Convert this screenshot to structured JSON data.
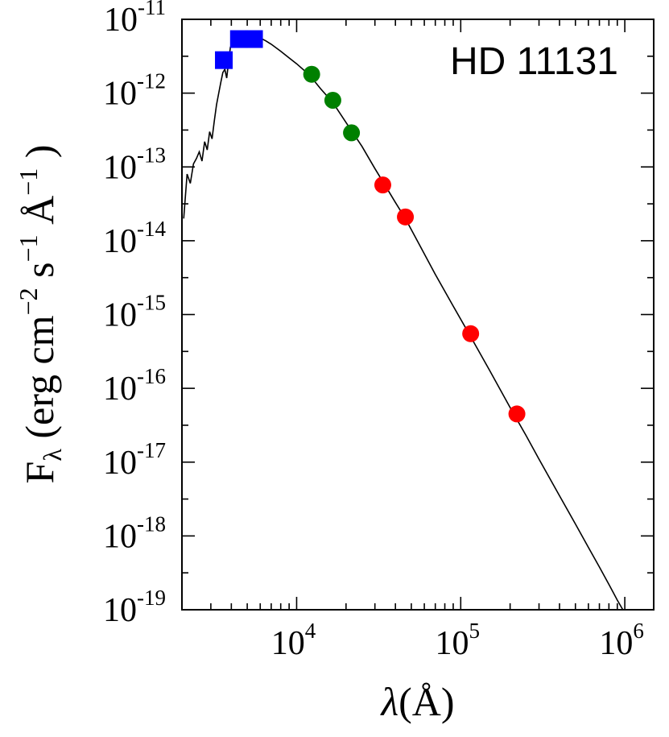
{
  "chart_data": {
    "type": "scatter",
    "annotation": "HD 11131",
    "xlabel_symbol": "λ",
    "xlabel_unit": "(Å)",
    "ylabel_main": "F",
    "ylabel_sub": "λ",
    "ylabel_units": [
      {
        "t": " (erg cm",
        "sup": false
      },
      {
        "t": "−2",
        "sup": true
      },
      {
        "t": " s",
        "sup": false
      },
      {
        "t": "−1",
        "sup": true
      },
      {
        "t": " Å",
        "sup": false
      },
      {
        "t": "−1",
        "sup": true
      },
      {
        "t": " )",
        "sup": false
      }
    ],
    "x_scale": "log",
    "y_scale": "log",
    "xlim": [
      2000,
      1500000
    ],
    "ylim": [
      1e-19,
      1e-11
    ],
    "x_ticks": [
      {
        "value": 10000,
        "base": "10",
        "exp": "4"
      },
      {
        "value": 100000,
        "base": "10",
        "exp": "5"
      },
      {
        "value": 1000000,
        "base": "10",
        "exp": "6"
      }
    ],
    "y_ticks": [
      {
        "value": 1e-11,
        "base": "10",
        "exp": "-11"
      },
      {
        "value": 1e-12,
        "base": "10",
        "exp": "-12"
      },
      {
        "value": 1e-13,
        "base": "10",
        "exp": "-13"
      },
      {
        "value": 1e-14,
        "base": "10",
        "exp": "-14"
      },
      {
        "value": 1e-15,
        "base": "10",
        "exp": "-15"
      },
      {
        "value": 1e-16,
        "base": "10",
        "exp": "-16"
      },
      {
        "value": 1e-17,
        "base": "10",
        "exp": "-17"
      },
      {
        "value": 1e-18,
        "base": "10",
        "exp": "-18"
      },
      {
        "value": 1e-19,
        "base": "10",
        "exp": "-19"
      }
    ],
    "grid": false,
    "legend": "none",
    "series": [
      {
        "marker": "square",
        "color": "#0000ff",
        "points": [
          {
            "x": 3600,
            "y": 2.8e-12
          },
          {
            "x": 4450,
            "y": 5.4e-12
          },
          {
            "x": 5500,
            "y": 5.4e-12
          }
        ]
      },
      {
        "marker": "circle",
        "color": "#008000",
        "points": [
          {
            "x": 12350,
            "y": 1.8e-12
          },
          {
            "x": 16620,
            "y": 8e-13
          },
          {
            "x": 21590,
            "y": 2.9e-13
          }
        ]
      },
      {
        "marker": "circle",
        "color": "#ff0000",
        "points": [
          {
            "x": 33500,
            "y": 5.7e-14
          },
          {
            "x": 46000,
            "y": 2.1e-14
          },
          {
            "x": 115000,
            "y": 5.5e-16
          },
          {
            "x": 220000,
            "y": 4.5e-17
          }
        ]
      }
    ],
    "model_line": {
      "color": "#000000",
      "points": [
        [
          2050,
          2e-14
        ],
        [
          2150,
          8e-14
        ],
        [
          2250,
          6e-14
        ],
        [
          2350,
          1.1e-13
        ],
        [
          2450,
          1.3e-13
        ],
        [
          2550,
          1.6e-13
        ],
        [
          2650,
          1.2e-13
        ],
        [
          2750,
          2.2e-13
        ],
        [
          2850,
          1.7e-13
        ],
        [
          2950,
          3e-13
        ],
        [
          3050,
          2.4e-13
        ],
        [
          3150,
          4.2e-13
        ],
        [
          3250,
          7e-13
        ],
        [
          3350,
          1e-12
        ],
        [
          3450,
          1.4e-12
        ],
        [
          3550,
          1.9e-12
        ],
        [
          3650,
          2.1e-12
        ],
        [
          3750,
          1.6e-12
        ],
        [
          3850,
          2.7e-12
        ],
        [
          3950,
          4.2e-12
        ],
        [
          4100,
          4.8e-12
        ],
        [
          4300,
          5.3e-12
        ],
        [
          4500,
          5.6e-12
        ],
        [
          4800,
          5.9e-12
        ],
        [
          5200,
          6.1e-12
        ],
        [
          5600,
          5.9e-12
        ],
        [
          6000,
          5.6e-12
        ],
        [
          6500,
          5.1e-12
        ],
        [
          7000,
          4.6e-12
        ],
        [
          8000,
          3.7e-12
        ],
        [
          9000,
          3e-12
        ],
        [
          10000,
          2.5e-12
        ],
        [
          12000,
          1.75e-12
        ],
        [
          14000,
          1.15e-12
        ],
        [
          16600,
          7.5e-13
        ],
        [
          20000,
          4e-13
        ],
        [
          25000,
          1.9e-13
        ],
        [
          30000,
          9.5e-14
        ],
        [
          35000,
          5.4e-14
        ],
        [
          40000,
          3.3e-14
        ],
        [
          46000,
          2e-14
        ],
        [
          55000,
          9.5e-15
        ],
        [
          70000,
          3.5e-15
        ],
        [
          90000,
          1.3e-15
        ],
        [
          115000,
          5e-16
        ],
        [
          150000,
          1.75e-16
        ],
        [
          200000,
          5.5e-17
        ],
        [
          250000,
          2.3e-17
        ],
        [
          300000,
          1.1e-17
        ],
        [
          400000,
          3.5e-18
        ],
        [
          500000,
          1.45e-18
        ],
        [
          600000,
          7e-19
        ],
        [
          700000,
          3.8e-19
        ],
        [
          800000,
          2.2e-19
        ],
        [
          900000,
          1.35e-19
        ],
        [
          1000000,
          9e-20
        ]
      ]
    }
  }
}
